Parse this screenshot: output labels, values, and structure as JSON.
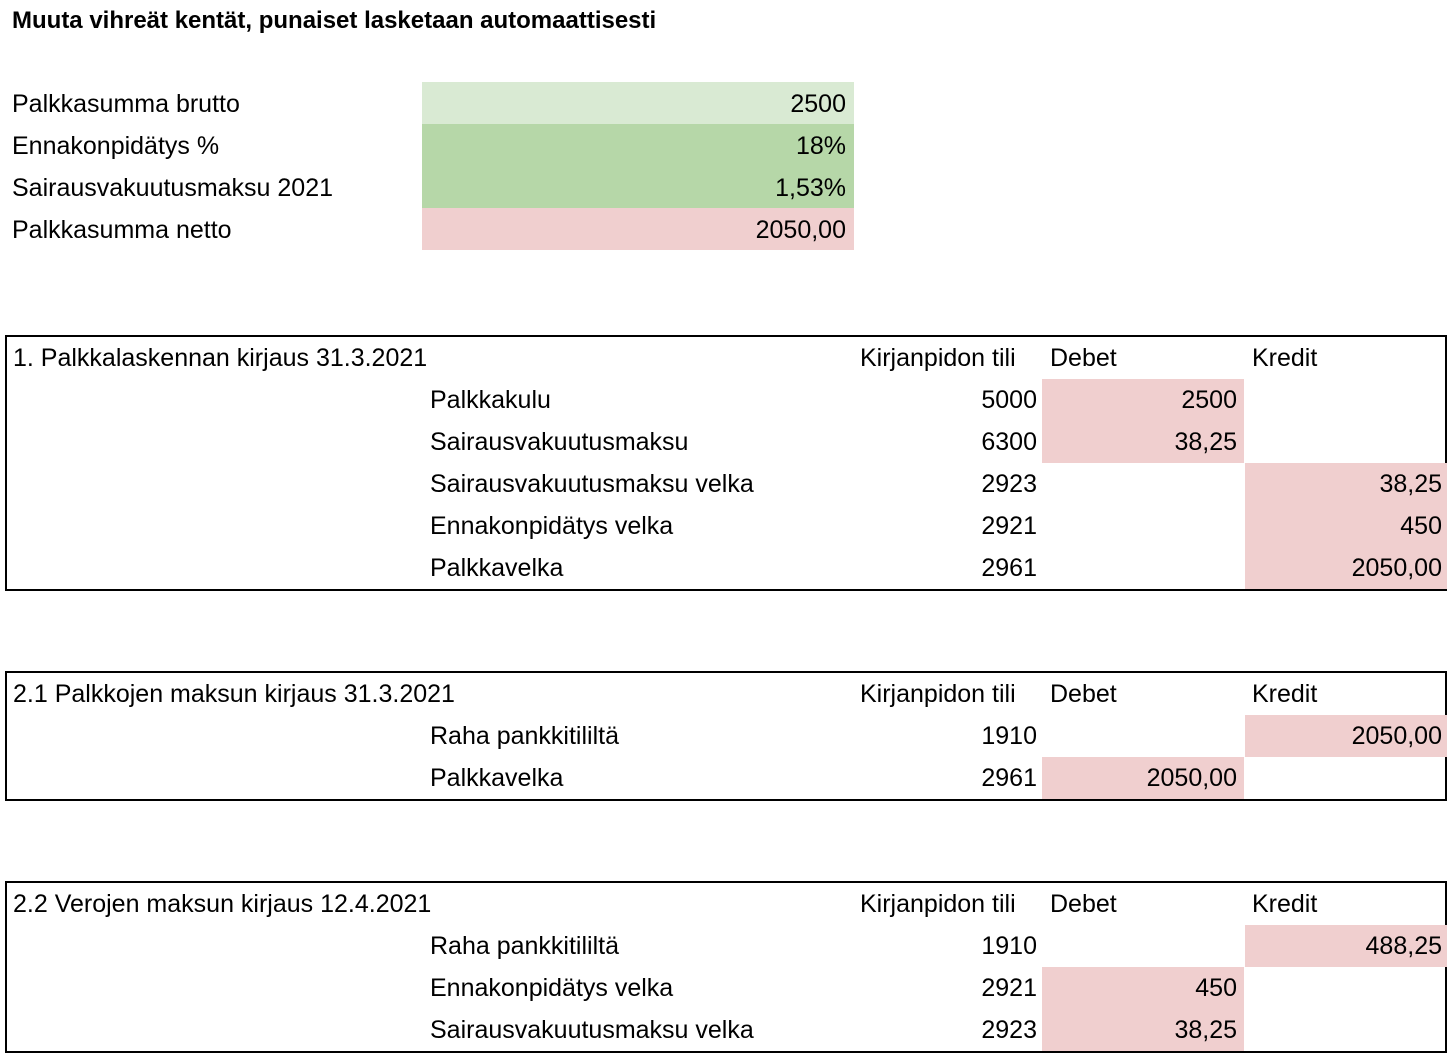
{
  "instruction": "Muuta vihreät kentät, punaiset lasketaan automaattisesti",
  "calculator": {
    "gross": {
      "label": "Palkkasumma brutto",
      "value": "2500"
    },
    "withholding": {
      "label": "Ennakonpidätys %",
      "value": "18%"
    },
    "health_insurance": {
      "label": "Sairausvakuutusmaksu 2021",
      "value": "1,53%"
    },
    "net": {
      "label": "Palkkasumma netto",
      "value": "2050,00"
    }
  },
  "colors": {
    "input_light_green": "#d9ead3",
    "input_green": "#b6d7a8",
    "calculated_red": "#f0cfcf"
  },
  "column_headers": {
    "account": "Kirjanpidon tili",
    "debit": "Debet",
    "credit": "Kredit"
  },
  "sections": [
    {
      "title": "1. Palkkalaskennan kirjaus 31.3.2021",
      "rows": [
        {
          "label": "Palkkakulu",
          "account": "5000",
          "debit": "2500",
          "credit": ""
        },
        {
          "label": "Sairausvakuutusmaksu",
          "account": "6300",
          "debit": "38,25",
          "credit": ""
        },
        {
          "label": "Sairausvakuutusmaksu velka",
          "account": "2923",
          "debit": "",
          "credit": "38,25"
        },
        {
          "label": "Ennakonpidätys velka",
          "account": "2921",
          "debit": "",
          "credit": "450"
        },
        {
          "label": "Palkkavelka",
          "account": "2961",
          "debit": "",
          "credit": "2050,00"
        }
      ]
    },
    {
      "title": "2.1 Palkkojen maksun kirjaus 31.3.2021",
      "rows": [
        {
          "label": "Raha pankkitililtä",
          "account": "1910",
          "debit": "",
          "credit": "2050,00"
        },
        {
          "label": "Palkkavelka",
          "account": "2961",
          "debit": "2050,00",
          "credit": ""
        }
      ]
    },
    {
      "title": "2.2 Verojen maksun kirjaus 12.4.2021",
      "rows": [
        {
          "label": "Raha pankkitililtä",
          "account": "1910",
          "debit": "",
          "credit": "488,25"
        },
        {
          "label": "Ennakonpidätys velka",
          "account": "2921",
          "debit": "450",
          "credit": ""
        },
        {
          "label": "Sairausvakuutusmaksu velka",
          "account": "2923",
          "debit": "38,25",
          "credit": ""
        }
      ]
    }
  ]
}
